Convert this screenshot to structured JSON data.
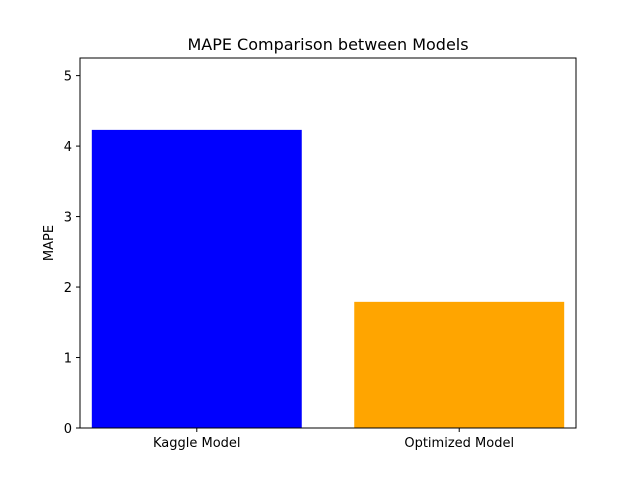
{
  "chart_data": {
    "type": "bar",
    "title": "MAPE Comparison between Models",
    "xlabel": "",
    "ylabel": "MAPE",
    "categories": [
      "Kaggle Model",
      "Optimized Model"
    ],
    "values": [
      4.23,
      1.79
    ],
    "colors": [
      "#0000ff",
      "#ffa500"
    ],
    "ylim": [
      0,
      5.25
    ],
    "yticks": [
      0,
      1,
      2,
      3,
      4,
      5
    ],
    "grid": false,
    "legend": "none"
  }
}
